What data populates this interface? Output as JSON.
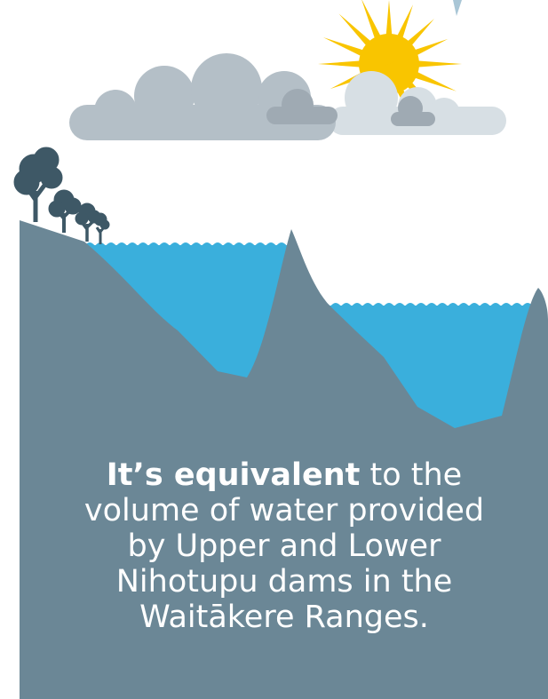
{
  "caption": {
    "bold": "It’s equivalent",
    "text": "to the volume of water provided by Upper and Lower Nihotupu dams in the Waitākere Ranges."
  }
}
